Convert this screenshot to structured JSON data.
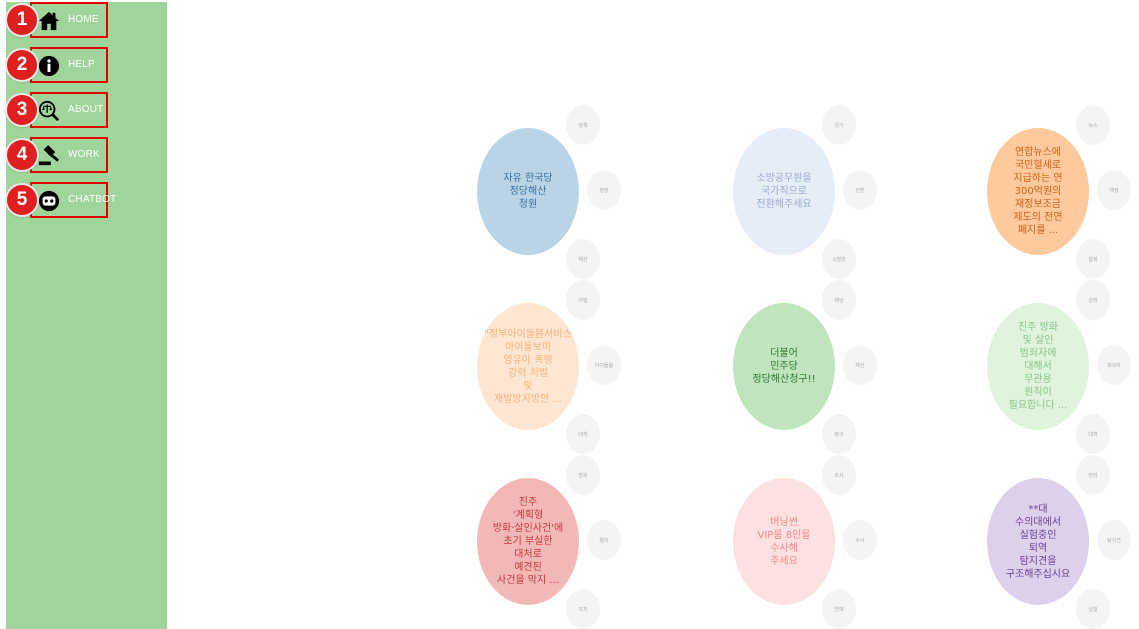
{
  "nav": [
    {
      "num": "1",
      "label": "HOME",
      "icon": "home-icon"
    },
    {
      "num": "2",
      "label": "HELP",
      "icon": "info-icon"
    },
    {
      "num": "3",
      "label": "ABOUT",
      "icon": "scales-magnifier-icon"
    },
    {
      "num": "4",
      "label": "WORK",
      "icon": "gavel-icon"
    },
    {
      "num": "5",
      "label": "CHATBOT",
      "icon": "robot-icon"
    }
  ],
  "bubbles": [
    {
      "text": "자유 한국당\n정당해산\n청원",
      "color": "#b9d4e6",
      "text_color": "#3c6f99"
    },
    {
      "text": "소방공무원을\n국가직으로\n전환해주세요",
      "color": "#e6edf7",
      "text_color": "#9aaccb"
    },
    {
      "text": "연합뉴스에\n국민혈세로\n지급하는 연\n300억원의\n재정보조금\n제도의 전면\n폐지를 ...",
      "color": "#fec99c",
      "text_color": "#c7621c"
    },
    {
      "text": "\"정부아이돌봄서비스\n아이돌보미\n영유아 폭행\n강력 처벌\n및\n재발방지방안 ...",
      "color": "#fee6d2",
      "text_color": "#f0b27a"
    },
    {
      "text": "더불어\n민주당\n정당해산청구!!",
      "color": "#c0e4bd",
      "text_color": "#2f7a2f"
    },
    {
      "text": "진주 방화\n및 살인\n범죄자에\n대해서\n무관용\n원칙이\n필요합니다 ...",
      "color": "#e0f3dc",
      "text_color": "#88c488"
    },
    {
      "text": "진주\n'계획형\n방화·살인사건'에\n초기 부실한\n대처로\n예견된\n사건을 막지 ...",
      "color": "#f2b8b8",
      "text_color": "#c0393b"
    },
    {
      "text": "버닝썬\nVIP룸 8인을\n수사해\n주세요",
      "color": "#fde0e0",
      "text_color": "#ee8a8a"
    },
    {
      "text": "**대\n수의대에서\n실험중인\n퇴역\n탐지견을\n구조해주십시요",
      "color": "#ddd0ea",
      "text_color": "#6a3f94"
    }
  ],
  "satellites": [
    "정책",
    "정당",
    "해산",
    "국가",
    "전환",
    "소방관",
    "뉴스",
    "재정",
    "협회",
    "처벌",
    "아이돌봄",
    "대책",
    "해당",
    "해산",
    "청구",
    "강력",
    "피의자",
    "대책",
    "방화",
    "멸치",
    "조치",
    "조사",
    "수사",
    "연예",
    "반려",
    "탐지견",
    "실험"
  ]
}
